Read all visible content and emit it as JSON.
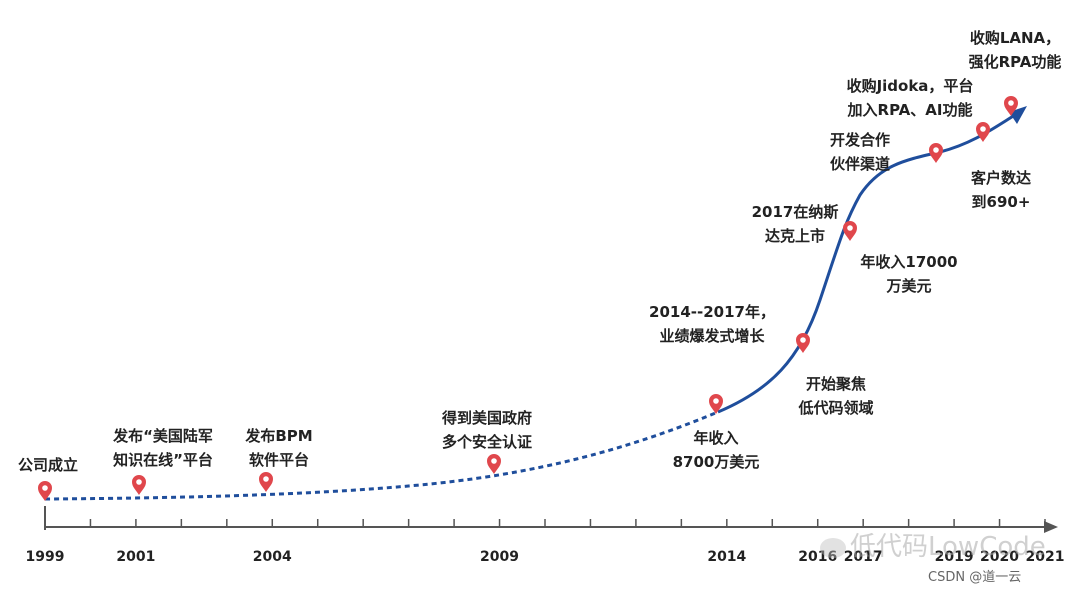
{
  "years": [
    {
      "label": "1999",
      "x": 1999
    },
    {
      "label": "2001",
      "x": 2001
    },
    {
      "label": "2004",
      "x": 2004
    },
    {
      "label": "2009",
      "x": 2009
    },
    {
      "label": "2014",
      "x": 2014
    },
    {
      "label": "2016",
      "x": 2016
    },
    {
      "label": "2017",
      "x": 2017
    },
    {
      "label": "2019",
      "x": 2019
    },
    {
      "label": "2020",
      "x": 2020
    },
    {
      "label": "2021",
      "x": 2021
    }
  ],
  "events": [
    {
      "lines": [
        "公司成立"
      ]
    },
    {
      "lines": [
        "发布“美国陆军",
        "知识在线”平台"
      ]
    },
    {
      "lines": [
        "发布BPM",
        "软件平台"
      ]
    },
    {
      "lines": [
        "得到美国政府",
        "多个安全认证"
      ]
    },
    {
      "lines": [
        "年收入",
        "8700万美元"
      ]
    },
    {
      "lines": [
        "2014--2017年，",
        "业绩爆发式增长"
      ]
    },
    {
      "lines": [
        "开始聚焦",
        "低代码领域"
      ]
    },
    {
      "lines": [
        "2017在纳斯",
        "达克上市"
      ]
    },
    {
      "lines": [
        "年收入17000",
        "万美元"
      ]
    },
    {
      "lines": [
        "开发合作",
        "伙伴渠道"
      ]
    },
    {
      "lines": [
        "客户数达",
        "到690+"
      ]
    },
    {
      "lines": [
        "收购Jidoka，平台",
        "加入RPA、AI功能"
      ]
    },
    {
      "lines": [
        "收购LANA，",
        "强化RPA功能"
      ]
    }
  ],
  "watermark": {
    "text": "低代码LowCode"
  },
  "source": {
    "text": "CSDN @道一云"
  },
  "colors": {
    "curve": "#1f4e9c",
    "axis": "#555555",
    "marker": "#e0474c"
  }
}
